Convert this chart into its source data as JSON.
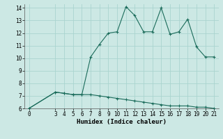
{
  "xlabel": "Humidex (Indice chaleur)",
  "bg_color": "#cce8e4",
  "grid_color": "#aad4cf",
  "line_color": "#1a6b5a",
  "marker": "+",
  "x_data": [
    0,
    3,
    4,
    5,
    6,
    7,
    8,
    9,
    10,
    11,
    12,
    13,
    14,
    15,
    16,
    17,
    18,
    19,
    20,
    21
  ],
  "y_data": [
    6,
    7.3,
    7.2,
    7.1,
    7.1,
    10.1,
    11.1,
    12.0,
    12.1,
    14.1,
    13.4,
    12.1,
    12.1,
    14.0,
    11.9,
    12.1,
    13.1,
    10.9,
    10.1,
    10.1
  ],
  "y2_data_x": [
    0,
    3,
    4,
    5,
    6,
    7,
    8,
    9,
    10,
    11,
    12,
    13,
    14,
    15,
    16,
    17,
    18,
    19,
    20,
    21
  ],
  "y2_data_y": [
    6,
    7.3,
    7.2,
    7.1,
    7.1,
    7.1,
    7.0,
    6.9,
    6.8,
    6.7,
    6.6,
    6.5,
    6.4,
    6.3,
    6.2,
    6.2,
    6.2,
    6.1,
    6.1,
    6.0
  ],
  "xlim": [
    -0.5,
    21.5
  ],
  "ylim": [
    6,
    14.3
  ],
  "yticks": [
    6,
    7,
    8,
    9,
    10,
    11,
    12,
    13,
    14
  ],
  "xticks": [
    0,
    3,
    4,
    5,
    6,
    7,
    8,
    9,
    10,
    11,
    12,
    13,
    14,
    15,
    16,
    17,
    18,
    19,
    20,
    21
  ],
  "label_fontsize": 6.5,
  "tick_fontsize": 5.5,
  "linewidth": 0.8,
  "markersize": 3.5,
  "markeredgewidth": 0.8
}
